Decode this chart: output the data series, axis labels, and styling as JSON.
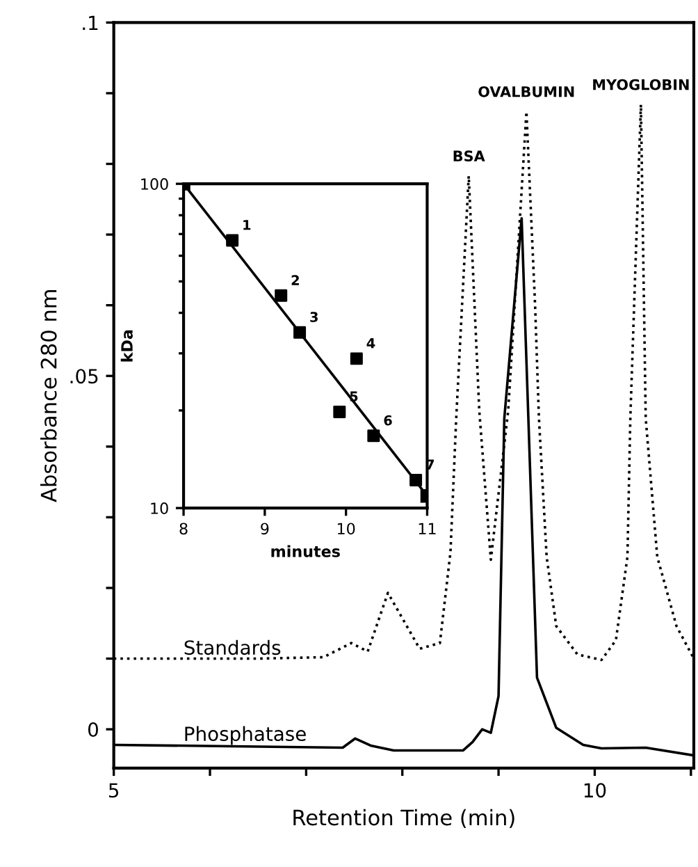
{
  "chart_data": [
    {
      "type": "line",
      "xlabel": "Retention Time (min)",
      "ylabel": "Absorbance 280 nm",
      "xlim": [
        5,
        11.03
      ],
      "ylim": [
        -0.0055,
        0.1
      ],
      "xticks": [
        5,
        {
          "value": 6,
          "label": null
        },
        {
          "value": 7,
          "label": null
        },
        {
          "value": 8,
          "label": null
        },
        {
          "value": 9,
          "label": null
        },
        10,
        {
          "value": 11,
          "label": null
        }
      ],
      "yticks": [
        {
          "value": 0,
          "label": "0"
        },
        {
          "value": 0.01,
          "label": null
        },
        {
          "value": 0.02,
          "label": null
        },
        {
          "value": 0.03,
          "label": null
        },
        {
          "value": 0.04,
          "label": null
        },
        {
          "value": 0.05,
          "label": ".05"
        },
        {
          "value": 0.06,
          "label": null
        },
        {
          "value": 0.07,
          "label": null
        },
        {
          "value": 0.08,
          "label": null
        },
        {
          "value": 0.09,
          "label": null
        },
        {
          "value": 0.1,
          "label": ".1"
        }
      ],
      "grid": false,
      "legend": false,
      "series": [
        {
          "name": "Standards",
          "color": "#000000",
          "line_style": "dotted",
          "x": [
            5,
            6.5,
            7.18,
            7.47,
            7.64,
            7.85,
            8.18,
            8.39,
            8.5,
            8.56,
            8.69,
            8.8,
            8.92,
            9.1,
            9.29,
            9.38,
            9.42,
            9.5,
            9.6,
            9.82,
            10.07,
            10.22,
            10.34,
            10.37,
            10.48,
            10.53,
            10.65,
            10.85,
            11.03
          ],
          "values": [
            0.01,
            0.01,
            0.0102,
            0.0122,
            0.011,
            0.0193,
            0.0114,
            0.0122,
            0.025,
            0.044,
            0.0783,
            0.045,
            0.024,
            0.045,
            0.0874,
            0.06,
            0.044,
            0.0244,
            0.0146,
            0.0106,
            0.0098,
            0.0126,
            0.0244,
            0.044,
            0.0884,
            0.044,
            0.0244,
            0.0146,
            0.01
          ]
        },
        {
          "name": "Phosphatase",
          "color": "#000000",
          "line_style": "solid",
          "x": [
            5,
            7.38,
            7.51,
            7.67,
            7.91,
            8.63,
            8.73,
            8.83,
            8.92,
            9.0,
            9.06,
            9.24,
            9.31,
            9.4,
            9.6,
            9.88,
            10.07,
            10.53,
            11.03
          ],
          "values": [
            -0.0022,
            -0.0026,
            -0.0013,
            -0.0023,
            -0.003,
            -0.003,
            -0.0018,
            0.0,
            -0.0005,
            0.0047,
            0.044,
            0.0723,
            0.044,
            0.0073,
            0.0002,
            -0.0022,
            -0.0027,
            -0.0026,
            -0.0037
          ]
        }
      ],
      "annotations": [
        {
          "text": "BSA",
          "x": 8.69,
          "y": 0.0783
        },
        {
          "text": "OVALBUMIN",
          "x": 9.29,
          "y": 0.0874
        },
        {
          "text": "MYOGLOBIN",
          "x": 10.48,
          "y": 0.0884
        }
      ]
    },
    {
      "type": "scatter",
      "xlabel": "minutes",
      "ylabel": "kDa",
      "log": "y",
      "xlim": [
        8,
        11
      ],
      "ylim": [
        10,
        100
      ],
      "xticks": [
        8,
        9,
        10,
        11
      ],
      "yticks": [
        10,
        100
      ],
      "grid": false,
      "legend": false,
      "marker": "square",
      "series": [
        {
          "color": "#000000",
          "x": [
            8.6,
            9.2,
            9.43,
            10.13,
            9.92,
            10.34,
            10.86
          ],
          "values": [
            66.9,
            45.2,
            34.8,
            28.9,
            19.8,
            16.7,
            12.2
          ]
        },
        {
          "type": "line",
          "color": "#000000",
          "line_style": "solid",
          "x": [
            8,
            11
          ],
          "values": [
            100,
            10.9
          ]
        }
      ],
      "annotations": [
        {
          "text": "1",
          "x": 8.6,
          "y": 66.9
        },
        {
          "text": "2",
          "x": 9.2,
          "y": 45.2
        },
        {
          "text": "3",
          "x": 9.43,
          "y": 34.8
        },
        {
          "text": "4",
          "x": 10.13,
          "y": 28.9
        },
        {
          "text": "5",
          "x": 9.92,
          "y": 19.8
        },
        {
          "text": "6",
          "x": 10.34,
          "y": 16.7
        },
        {
          "text": "7",
          "x": 10.86,
          "y": 12.2
        }
      ]
    }
  ]
}
